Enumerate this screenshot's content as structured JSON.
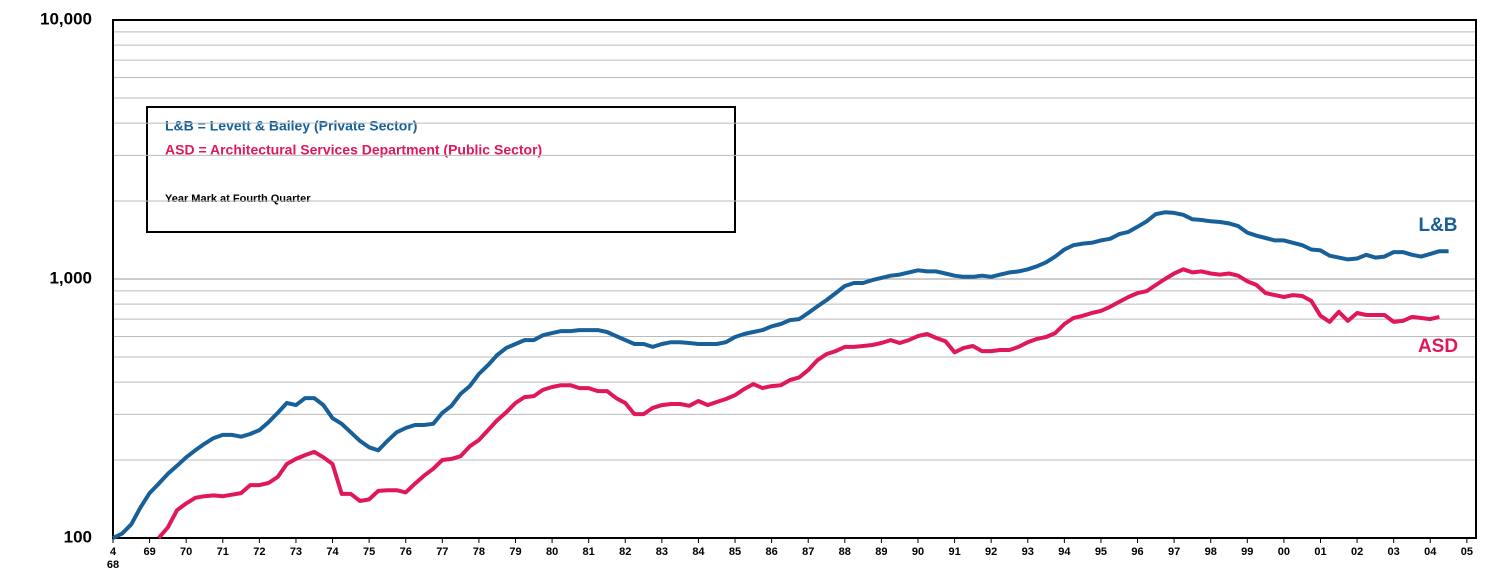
{
  "chart_data": {
    "type": "line",
    "y_log_scale": true,
    "grid": true,
    "ylim": [
      100,
      10000
    ],
    "yticks": [
      {
        "value": 100,
        "label": "100"
      },
      {
        "value": 1000,
        "label": "1,000"
      },
      {
        "value": 10000,
        "label": "10,000"
      }
    ],
    "y_minor_grid": [
      200,
      300,
      400,
      500,
      600,
      700,
      800,
      900,
      2000,
      3000,
      4000,
      5000,
      6000,
      7000,
      8000,
      9000
    ],
    "xlim": [
      1968.75,
      2006
    ],
    "xticks": [
      {
        "value": 1968.75,
        "label": "4"
      },
      {
        "value": 1969.75,
        "label": "69"
      },
      {
        "value": 1970.75,
        "label": "70"
      },
      {
        "value": 1971.75,
        "label": "71"
      },
      {
        "value": 1972.75,
        "label": "72"
      },
      {
        "value": 1973.75,
        "label": "73"
      },
      {
        "value": 1974.75,
        "label": "74"
      },
      {
        "value": 1975.75,
        "label": "75"
      },
      {
        "value": 1976.75,
        "label": "76"
      },
      {
        "value": 1977.75,
        "label": "77"
      },
      {
        "value": 1978.75,
        "label": "78"
      },
      {
        "value": 1979.75,
        "label": "79"
      },
      {
        "value": 1980.75,
        "label": "80"
      },
      {
        "value": 1981.75,
        "label": "81"
      },
      {
        "value": 1982.75,
        "label": "82"
      },
      {
        "value": 1983.75,
        "label": "83"
      },
      {
        "value": 1984.75,
        "label": "84"
      },
      {
        "value": 1985.75,
        "label": "85"
      },
      {
        "value": 1986.75,
        "label": "86"
      },
      {
        "value": 1987.75,
        "label": "87"
      },
      {
        "value": 1988.75,
        "label": "88"
      },
      {
        "value": 1989.75,
        "label": "89"
      },
      {
        "value": 1990.75,
        "label": "90"
      },
      {
        "value": 1991.75,
        "label": "91"
      },
      {
        "value": 1992.75,
        "label": "92"
      },
      {
        "value": 1993.75,
        "label": "93"
      },
      {
        "value": 1994.75,
        "label": "94"
      },
      {
        "value": 1995.75,
        "label": "95"
      },
      {
        "value": 1996.75,
        "label": "96"
      },
      {
        "value": 1997.75,
        "label": "97"
      },
      {
        "value": 1998.75,
        "label": "98"
      },
      {
        "value": 1999.75,
        "label": "99"
      },
      {
        "value": 2000.75,
        "label": "00"
      },
      {
        "value": 2001.75,
        "label": "01"
      },
      {
        "value": 2002.75,
        "label": "02"
      },
      {
        "value": 2003.75,
        "label": "03"
      },
      {
        "value": 2004.75,
        "label": "04"
      },
      {
        "value": 2005.75,
        "label": "05"
      }
    ],
    "x_start_year_label": "68",
    "note": "Year Mark at Fourth Quarter",
    "x": [
      1968.75,
      1969,
      1969.25,
      1969.5,
      1969.75,
      1970,
      1970.25,
      1970.5,
      1970.75,
      1971,
      1971.25,
      1971.5,
      1971.75,
      1972,
      1972.25,
      1972.5,
      1972.75,
      1973,
      1973.25,
      1973.5,
      1973.75,
      1974,
      1974.25,
      1974.5,
      1974.75,
      1975,
      1975.25,
      1975.5,
      1975.75,
      1976,
      1976.25,
      1976.5,
      1976.75,
      1977,
      1977.25,
      1977.5,
      1977.75,
      1978,
      1978.25,
      1978.5,
      1978.75,
      1979,
      1979.25,
      1979.5,
      1979.75,
      1980,
      1980.25,
      1980.5,
      1980.75,
      1981,
      1981.25,
      1981.5,
      1981.75,
      1982,
      1982.25,
      1982.5,
      1982.75,
      1983,
      1983.25,
      1983.5,
      1983.75,
      1984,
      1984.25,
      1984.5,
      1984.75,
      1985,
      1985.25,
      1985.5,
      1985.75,
      1986,
      1986.25,
      1986.5,
      1986.75,
      1987,
      1987.25,
      1987.5,
      1987.75,
      1988,
      1988.25,
      1988.5,
      1988.75,
      1989,
      1989.25,
      1989.5,
      1989.75,
      1990,
      1990.25,
      1990.5,
      1990.75,
      1991,
      1991.25,
      1991.5,
      1991.75,
      1992,
      1992.25,
      1992.5,
      1992.75,
      1993,
      1993.25,
      1993.5,
      1993.75,
      1994,
      1994.25,
      1994.5,
      1994.75,
      1995,
      1995.25,
      1995.5,
      1995.75,
      1996,
      1996.25,
      1996.5,
      1996.75,
      1997,
      1997.25,
      1997.5,
      1997.75,
      1998,
      1998.25,
      1998.5,
      1998.75,
      1999,
      1999.25,
      1999.5,
      1999.75,
      2000,
      2000.25,
      2000.5,
      2000.75,
      2001,
      2001.25,
      2001.5,
      2001.75,
      2002,
      2002.25,
      2002.5,
      2002.75,
      2003,
      2003.25,
      2003.5,
      2003.75,
      2004,
      2004.25,
      2004.5,
      2004.75,
      2005,
      2005.25
    ],
    "series": [
      {
        "name": "L&B",
        "description": "L&B = Levett & Bailey (Private Sector)",
        "color": "#17609a",
        "values": [
          100,
          104,
          113,
          131,
          149,
          162,
          177,
          190,
          205,
          218,
          231,
          243,
          250,
          250,
          246,
          252,
          261,
          280,
          304,
          332,
          326,
          347,
          347,
          326,
          290,
          276,
          256,
          237,
          224,
          218,
          237,
          256,
          266,
          273,
          273,
          276,
          304,
          324,
          360,
          386,
          430,
          465,
          509,
          542,
          561,
          581,
          581,
          607,
          618,
          629,
          629,
          635,
          635,
          635,
          624,
          602,
          581,
          561,
          561,
          547,
          561,
          570,
          570,
          566,
          561,
          561,
          561,
          570,
          597,
          613,
          624,
          635,
          657,
          670,
          694,
          700,
          739,
          784,
          829,
          882,
          940,
          965,
          965,
          990,
          1010,
          1030,
          1040,
          1060,
          1080,
          1070,
          1070,
          1050,
          1030,
          1020,
          1020,
          1030,
          1020,
          1040,
          1060,
          1070,
          1090,
          1120,
          1160,
          1220,
          1300,
          1350,
          1370,
          1380,
          1410,
          1430,
          1490,
          1520,
          1590,
          1670,
          1780,
          1810,
          1800,
          1770,
          1700,
          1690,
          1670,
          1660,
          1640,
          1600,
          1510,
          1470,
          1440,
          1410,
          1410,
          1380,
          1350,
          1300,
          1290,
          1230,
          1210,
          1190,
          1200,
          1240,
          1210,
          1220,
          1270,
          1270,
          1240,
          1220,
          1250,
          1280,
          1280
        ]
      },
      {
        "name": "ASD",
        "description": "ASD = Architectural Services Department (Public Sector)",
        "color": "#e0185a",
        "values": [
          null,
          null,
          null,
          null,
          null,
          100,
          110,
          128,
          136,
          143,
          145,
          146,
          145,
          147,
          149,
          160,
          160,
          163,
          172,
          193,
          202,
          209,
          215,
          205,
          193,
          148,
          148,
          139,
          141,
          152,
          153,
          153,
          150,
          162,
          174,
          185,
          200,
          202,
          207,
          226,
          239,
          261,
          285,
          306,
          332,
          350,
          353,
          373,
          383,
          389,
          389,
          379,
          379,
          369,
          369,
          347,
          332,
          301,
          301,
          318,
          326,
          329,
          329,
          324,
          338,
          326,
          335,
          344,
          356,
          376,
          393,
          379,
          386,
          389,
          407,
          417,
          445,
          486,
          513,
          527,
          547,
          547,
          551,
          556,
          566,
          581,
          566,
          581,
          602,
          613,
          592,
          575,
          521,
          542,
          551,
          527,
          527,
          532,
          532,
          547,
          570,
          587,
          597,
          618,
          670,
          707,
          721,
          739,
          753,
          781,
          816,
          852,
          882,
          898,
          948,
          1000,
          1050,
          1090,
          1060,
          1070,
          1050,
          1040,
          1050,
          1030,
          980,
          948,
          882,
          867,
          852,
          867,
          860,
          823,
          721,
          683,
          747,
          689,
          739,
          726,
          726,
          726,
          683,
          689,
          714,
          707,
          700,
          714,
          null
        ]
      }
    ]
  }
}
